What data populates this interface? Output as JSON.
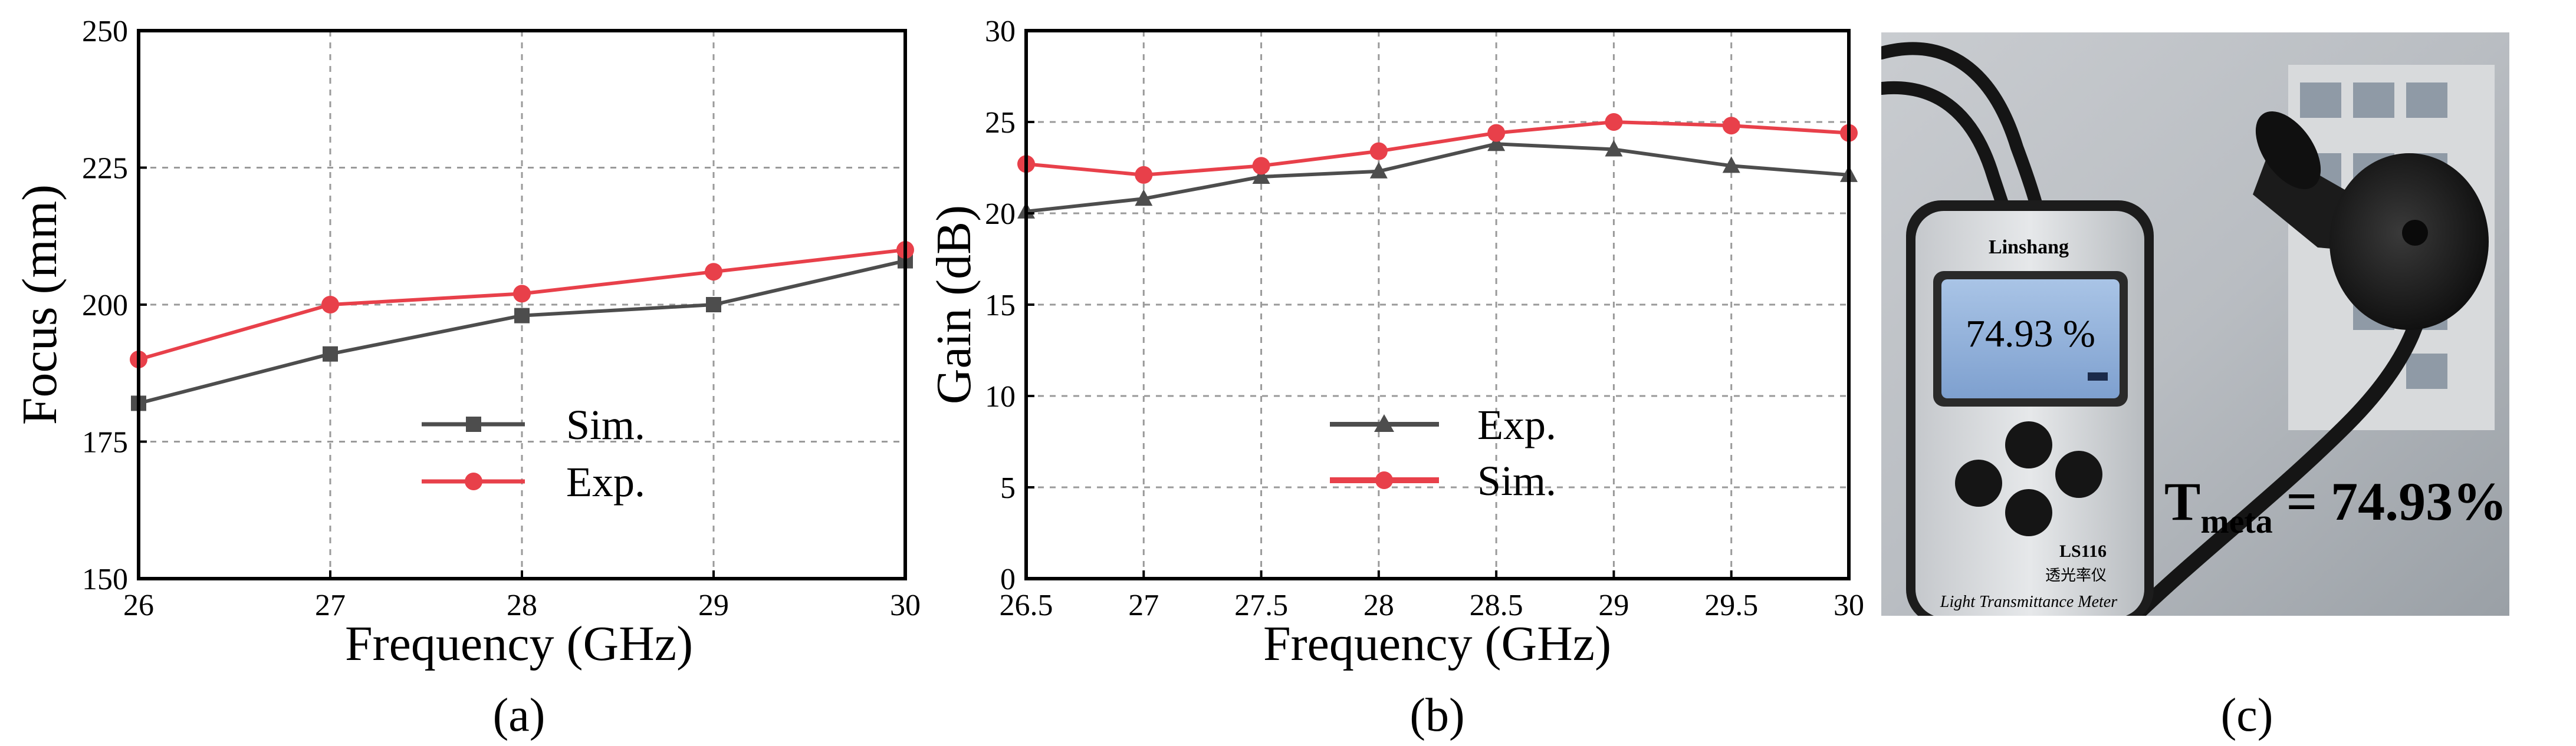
{
  "colors": {
    "sim_gray": "#4d4d4d",
    "exp_red": "#e8404a",
    "overlay_red": "#e8202a"
  },
  "chart_data": [
    {
      "type": "line",
      "panel_label": "(a)",
      "xlabel": "Frequency (GHz)",
      "ylabel": "Focus (mm)",
      "xlim": [
        26,
        30
      ],
      "ylim": [
        150,
        250
      ],
      "xticks": [
        26,
        27,
        28,
        29,
        30
      ],
      "xtick_labels": [
        "26",
        "27",
        "28",
        "29",
        "30"
      ],
      "yticks": [
        150,
        175,
        200,
        225,
        250
      ],
      "ytick_labels": [
        "150",
        "175",
        "200",
        "225",
        "250"
      ],
      "grid": true,
      "legend_position": "center",
      "series": [
        {
          "name": "Sim.",
          "color": "#4d4d4d",
          "marker": "square",
          "x": [
            26,
            27,
            28,
            29,
            30
          ],
          "values": [
            182,
            191,
            198,
            200,
            208
          ]
        },
        {
          "name": "Exp.",
          "color": "#e8404a",
          "marker": "circle",
          "x": [
            26,
            27,
            28,
            29,
            30
          ],
          "values": [
            190,
            200,
            202,
            206,
            210
          ]
        }
      ]
    },
    {
      "type": "line",
      "panel_label": "(b)",
      "xlabel": "Frequency (GHz)",
      "ylabel": "Gain (dB)",
      "xlim": [
        26.5,
        30
      ],
      "ylim": [
        0,
        30
      ],
      "xticks": [
        26.5,
        27,
        27.5,
        28,
        28.5,
        29,
        29.5,
        30
      ],
      "xtick_labels": [
        "26.5",
        "27",
        "27.5",
        "28",
        "28.5",
        "29",
        "29.5",
        "30"
      ],
      "yticks": [
        0,
        5,
        10,
        15,
        20,
        25,
        30
      ],
      "ytick_labels": [
        "0",
        "5",
        "10",
        "15",
        "20",
        "25",
        "30"
      ],
      "grid": true,
      "legend_position": "center",
      "series": [
        {
          "name": "Exp.",
          "color": "#4d4d4d",
          "marker": "triangle",
          "x": [
            26.5,
            27,
            27.5,
            28,
            28.5,
            29,
            29.5,
            30
          ],
          "values": [
            20.1,
            20.8,
            22.0,
            22.3,
            23.8,
            23.5,
            22.6,
            22.1
          ]
        },
        {
          "name": "Sim.",
          "color": "#e8404a",
          "marker": "circle",
          "x": [
            26.5,
            27,
            27.5,
            28,
            28.5,
            29,
            29.5,
            30
          ],
          "values": [
            22.7,
            22.1,
            22.6,
            23.4,
            24.4,
            25.0,
            24.8,
            24.4
          ]
        }
      ]
    }
  ],
  "photo": {
    "panel_label": "(c)",
    "meter_brand": "Linshang",
    "meter_display": "74.93 %",
    "meter_model": "LS116",
    "meter_subtitle": "透光率仪",
    "meter_name": "Light Transmittance Meter",
    "overlay_main": "T",
    "overlay_sub": "meta",
    "overlay_value": " = 74.93%"
  }
}
